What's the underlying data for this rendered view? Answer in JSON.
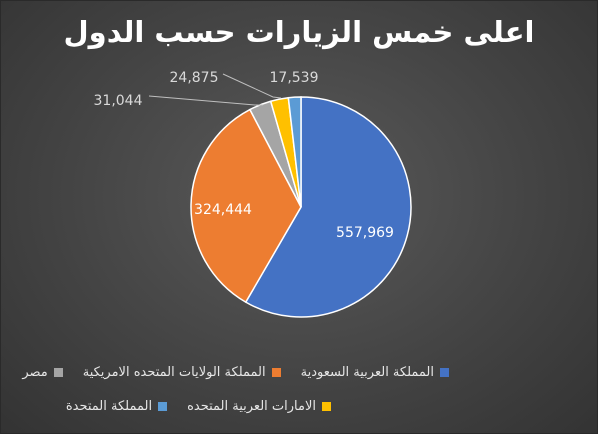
{
  "chart_data": {
    "type": "pie",
    "title": "اعلى خمس الزيارات حسب الدول",
    "categories": [
      "المملكة العربية السعودية",
      "المملكة الولايات المتحده الامريكية",
      "مصر",
      "الامارات العربية المتحده",
      "المملكة المتحدة"
    ],
    "values": [
      557969,
      324444,
      31044,
      24875,
      17539
    ],
    "data_labels": [
      "557,969",
      "324,444",
      "31,044",
      "24,875",
      "17,539"
    ],
    "colors": [
      "#4472C4",
      "#ED7D31",
      "#A5A5A5",
      "#FFC000",
      "#5B9BD5"
    ],
    "legend_position": "bottom",
    "background": "#404040"
  }
}
